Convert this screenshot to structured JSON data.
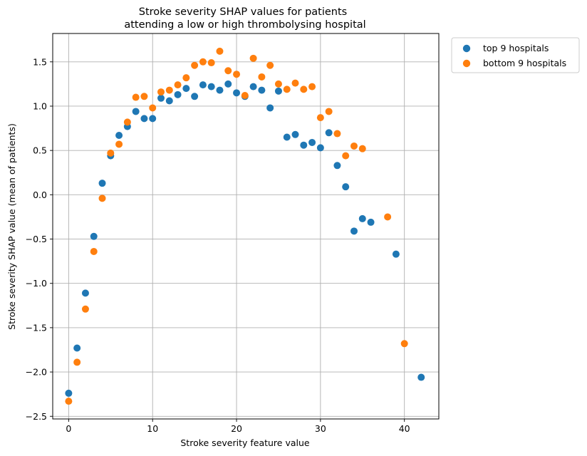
{
  "chart_data": {
    "type": "scatter",
    "title": [
      "Stroke severity SHAP values for patients",
      "attending a low or high thrombolysing hospital"
    ],
    "xlabel": "Stroke severity feature value",
    "ylabel": "Stroke severity SHAP value (mean of patients)",
    "xlim": [
      -1.9,
      44.1
    ],
    "ylim": [
      -2.53,
      1.82
    ],
    "xticks": [
      0,
      10,
      20,
      30,
      40
    ],
    "yticks": [
      -2.5,
      -2.0,
      -1.5,
      -1.0,
      -0.5,
      0.0,
      0.5,
      1.0,
      1.5
    ],
    "xtick_labels": [
      "0",
      "10",
      "20",
      "30",
      "40"
    ],
    "ytick_labels": [
      "−2.5",
      "−2.0",
      "−1.5",
      "−1.0",
      "−0.5",
      "0.0",
      "0.5",
      "1.0",
      "1.5"
    ],
    "grid": true,
    "legend_position": "outside-top-right",
    "series": [
      {
        "name": "top 9 hospitals",
        "color": "#1f77b4",
        "x": [
          0,
          1,
          2,
          3,
          4,
          5,
          6,
          7,
          8,
          9,
          10,
          11,
          12,
          13,
          14,
          15,
          16,
          17,
          18,
          19,
          20,
          21,
          22,
          23,
          24,
          25,
          26,
          27,
          28,
          29,
          30,
          31,
          32,
          33,
          34,
          35,
          36,
          39,
          42
        ],
        "y": [
          -2.24,
          -1.73,
          -1.11,
          -0.47,
          0.13,
          0.44,
          0.67,
          0.77,
          0.94,
          0.86,
          0.86,
          1.09,
          1.06,
          1.13,
          1.2,
          1.11,
          1.24,
          1.22,
          1.18,
          1.25,
          1.15,
          1.11,
          1.22,
          1.18,
          0.98,
          1.17,
          0.65,
          0.68,
          0.56,
          0.59,
          0.53,
          0.7,
          0.33,
          0.09,
          -0.41,
          -0.27,
          -0.31,
          -0.67,
          -2.06
        ]
      },
      {
        "name": "bottom 9 hospitals",
        "color": "#ff7f0e",
        "x": [
          0,
          1,
          2,
          3,
          4,
          5,
          6,
          7,
          8,
          9,
          10,
          11,
          12,
          13,
          14,
          15,
          16,
          17,
          18,
          19,
          20,
          21,
          22,
          23,
          24,
          25,
          26,
          27,
          28,
          29,
          30,
          31,
          32,
          33,
          34,
          35,
          38,
          40
        ],
        "y": [
          -2.33,
          -1.89,
          -1.29,
          -0.64,
          -0.04,
          0.47,
          0.57,
          0.82,
          1.1,
          1.11,
          0.98,
          1.16,
          1.18,
          1.24,
          1.32,
          1.46,
          1.5,
          1.49,
          1.62,
          1.4,
          1.36,
          1.12,
          1.54,
          1.33,
          1.46,
          1.25,
          1.19,
          1.26,
          1.19,
          1.22,
          0.87,
          0.94,
          0.69,
          0.44,
          0.55,
          0.52,
          -0.25,
          -1.68
        ]
      }
    ]
  }
}
